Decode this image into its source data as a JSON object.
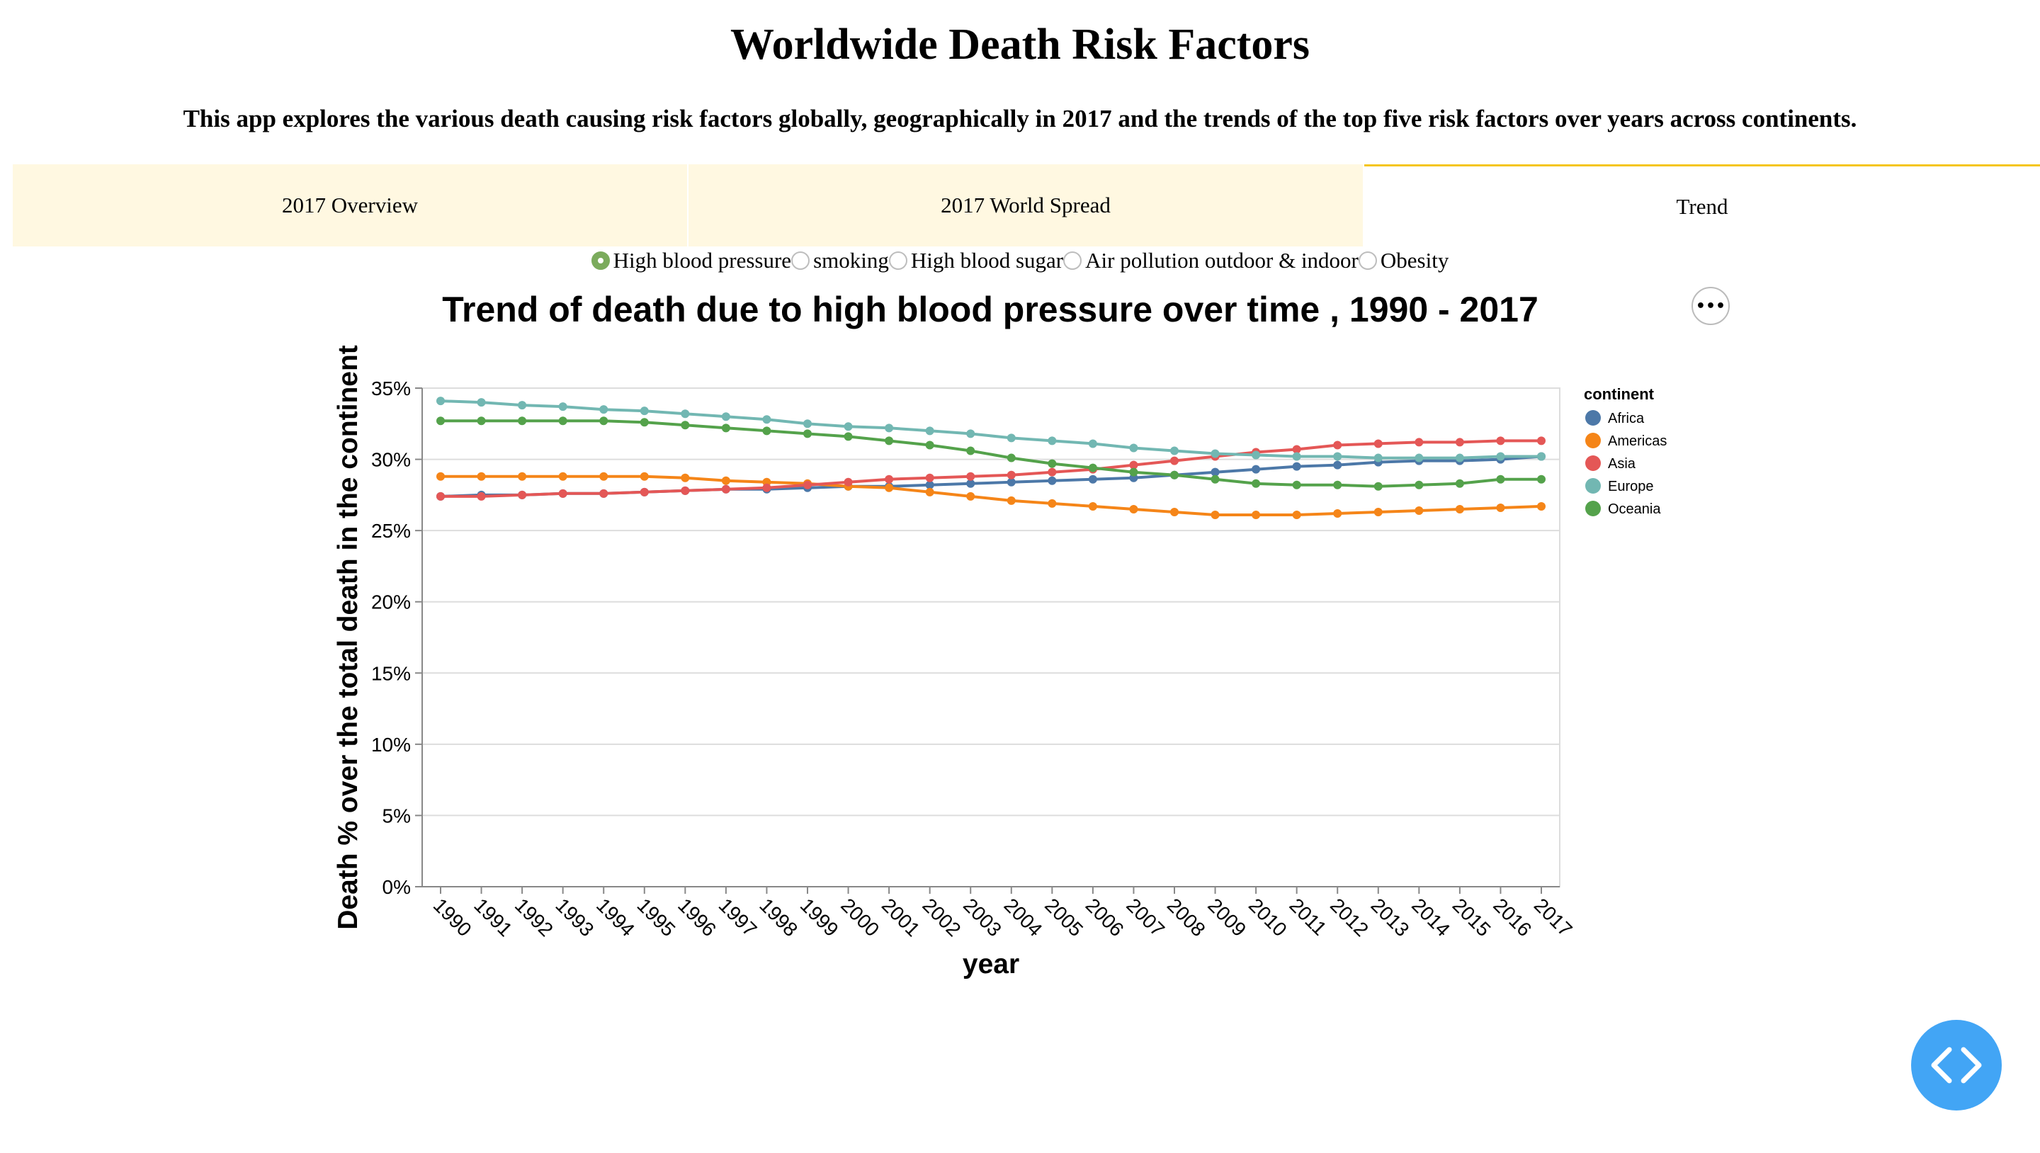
{
  "page": {
    "title": "Worldwide Death Risk Factors",
    "description": "This app explores the various death causing risk factors globally, geographically in 2017 and the trends of the top five risk factors over years across continents."
  },
  "tabs": [
    {
      "label": "2017 Overview",
      "active": false
    },
    {
      "label": "2017 World Spread",
      "active": false
    },
    {
      "label": "Trend",
      "active": true
    }
  ],
  "radios": [
    {
      "label": "High blood pressure",
      "selected": true
    },
    {
      "label": "smoking",
      "selected": false
    },
    {
      "label": "High blood sugar",
      "selected": false
    },
    {
      "label": "Air pollution outdoor & indoor",
      "selected": false
    },
    {
      "label": "Obesity",
      "selected": false
    }
  ],
  "menu_icon": "ellipsis-icon",
  "code_icon": "code-icon",
  "chart_data": {
    "type": "line",
    "title": "Trend of death due to high blood pressure over time , 1990 - 2017",
    "xlabel": "year",
    "ylabel": "Death % over the total death in the continent",
    "ylim": [
      0,
      35
    ],
    "yticks": [
      0,
      5,
      10,
      15,
      20,
      25,
      30,
      35
    ],
    "ytick_labels": [
      "0%",
      "5%",
      "10%",
      "15%",
      "20%",
      "25%",
      "30%",
      "35%"
    ],
    "grid": true,
    "legend_title": "continent",
    "legend_position": "right",
    "x": [
      1990,
      1991,
      1992,
      1993,
      1994,
      1995,
      1996,
      1997,
      1998,
      1999,
      2000,
      2001,
      2002,
      2003,
      2004,
      2005,
      2006,
      2007,
      2008,
      2009,
      2010,
      2011,
      2012,
      2013,
      2014,
      2015,
      2016,
      2017
    ],
    "series": [
      {
        "name": "Africa",
        "color": "#4c78a8",
        "values": [
          27.4,
          27.5,
          27.5,
          27.6,
          27.6,
          27.7,
          27.8,
          27.9,
          27.9,
          28.0,
          28.1,
          28.1,
          28.2,
          28.3,
          28.4,
          28.5,
          28.6,
          28.7,
          28.9,
          29.1,
          29.3,
          29.5,
          29.6,
          29.8,
          29.9,
          29.9,
          30.0,
          30.2
        ]
      },
      {
        "name": "Americas",
        "color": "#f58518",
        "values": [
          28.8,
          28.8,
          28.8,
          28.8,
          28.8,
          28.8,
          28.7,
          28.5,
          28.4,
          28.3,
          28.1,
          28.0,
          27.7,
          27.4,
          27.1,
          26.9,
          26.7,
          26.5,
          26.3,
          26.1,
          26.1,
          26.1,
          26.2,
          26.3,
          26.4,
          26.5,
          26.6,
          26.7
        ]
      },
      {
        "name": "Asia",
        "color": "#e45756",
        "values": [
          27.4,
          27.4,
          27.5,
          27.6,
          27.6,
          27.7,
          27.8,
          27.9,
          28.0,
          28.2,
          28.4,
          28.6,
          28.7,
          28.8,
          28.9,
          29.1,
          29.3,
          29.6,
          29.9,
          30.2,
          30.5,
          30.7,
          31.0,
          31.1,
          31.2,
          31.2,
          31.3,
          31.3
        ]
      },
      {
        "name": "Europe",
        "color": "#72b7b2",
        "values": [
          34.1,
          34.0,
          33.8,
          33.7,
          33.5,
          33.4,
          33.2,
          33.0,
          32.8,
          32.5,
          32.3,
          32.2,
          32.0,
          31.8,
          31.5,
          31.3,
          31.1,
          30.8,
          30.6,
          30.4,
          30.3,
          30.2,
          30.2,
          30.1,
          30.1,
          30.1,
          30.2,
          30.2
        ]
      },
      {
        "name": "Oceania",
        "color": "#54a24b",
        "values": [
          32.7,
          32.7,
          32.7,
          32.7,
          32.7,
          32.6,
          32.4,
          32.2,
          32.0,
          31.8,
          31.6,
          31.3,
          31.0,
          30.6,
          30.1,
          29.7,
          29.4,
          29.1,
          28.9,
          28.6,
          28.3,
          28.2,
          28.2,
          28.1,
          28.2,
          28.3,
          28.6,
          28.6
        ]
      }
    ]
  }
}
